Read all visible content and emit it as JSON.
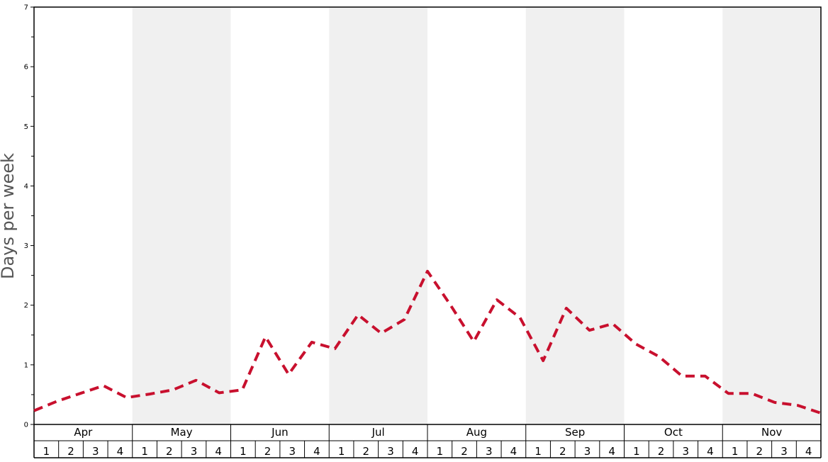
{
  "chart_data": {
    "type": "line",
    "ylabel": "Days per week",
    "ylim": [
      0,
      7
    ],
    "yticks": [
      "0",
      "1",
      "2",
      "3",
      "4",
      "5",
      "6",
      "7"
    ],
    "months": [
      "Apr",
      "May",
      "Jun",
      "Jul",
      "Aug",
      "Sep",
      "Oct",
      "Nov"
    ],
    "week_labels": [
      "1",
      "2",
      "3",
      "4"
    ],
    "alternating_month_shading": true,
    "colors": {
      "line": "#c8102e",
      "shade": "#f0f0f0",
      "axis": "#000000"
    },
    "series": [
      {
        "values": [
          0.23,
          0.39,
          0.52,
          0.65,
          0.45,
          0.51,
          0.58,
          0.74,
          0.53,
          0.58,
          1.47,
          0.84,
          1.38,
          1.27,
          1.84,
          1.53,
          1.76,
          2.57,
          2.0,
          1.39,
          2.09,
          1.79,
          1.07,
          1.95,
          1.58,
          1.69,
          1.35,
          1.14,
          0.81,
          0.81,
          0.52,
          0.52,
          0.37,
          0.32,
          0.19
        ]
      }
    ]
  }
}
